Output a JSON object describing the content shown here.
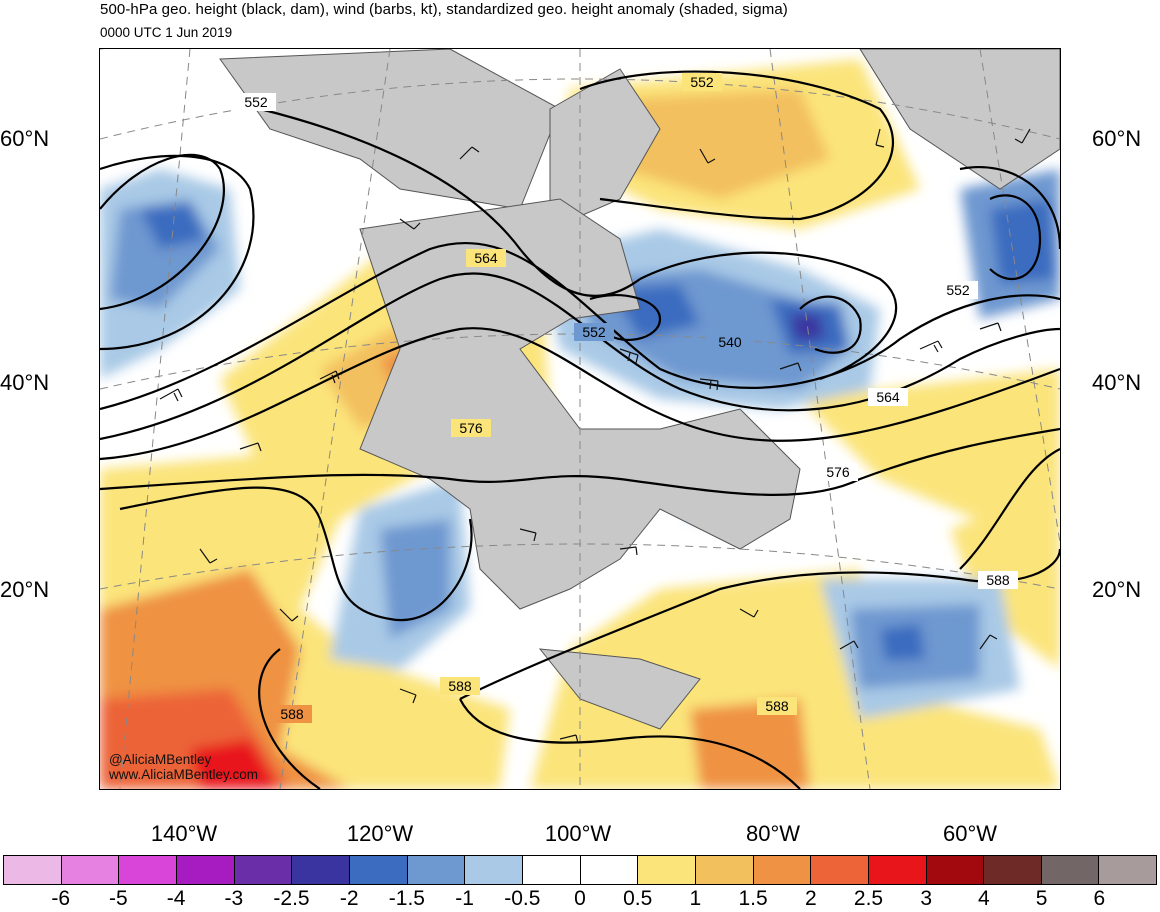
{
  "header": {
    "title": "500-hPa geo. height (black, dam), wind (barbs, kt), standardized geo. height anomaly (shaded, sigma)",
    "subtitle": "0000 UTC 1 Jun 2019"
  },
  "map": {
    "lat_labels": [
      "60°N",
      "40°N",
      "20°N"
    ],
    "lon_labels": [
      "140°W",
      "120°W",
      "100°W",
      "80°W",
      "60°W"
    ],
    "contour_labels": [
      "552",
      "552",
      "552",
      "552",
      "564",
      "564",
      "540",
      "576",
      "576",
      "588",
      "588",
      "588",
      "588"
    ],
    "credits": [
      "@AliciaMBentley",
      "www.AliciaMBentley.com"
    ]
  },
  "colorbar": {
    "colors": [
      "#ecb9e6",
      "#e680e1",
      "#d845d8",
      "#a61cc0",
      "#6a2fa8",
      "#3a34a0",
      "#3b6cbf",
      "#6e98d0",
      "#a9c9e6",
      "#ffffff",
      "#ffffff",
      "#fbe47a",
      "#f3c05e",
      "#ef9243",
      "#ec6437",
      "#e8161b",
      "#a1090e",
      "#6e2a26",
      "#726766",
      "#a79b9b"
    ],
    "labels": [
      "-6",
      "-5",
      "-4",
      "-3",
      "-2.5",
      "-2",
      "-1.5",
      "-1",
      "-0.5",
      "0",
      "0.5",
      "1",
      "1.5",
      "2",
      "2.5",
      "3",
      "4",
      "5",
      "6"
    ]
  }
}
